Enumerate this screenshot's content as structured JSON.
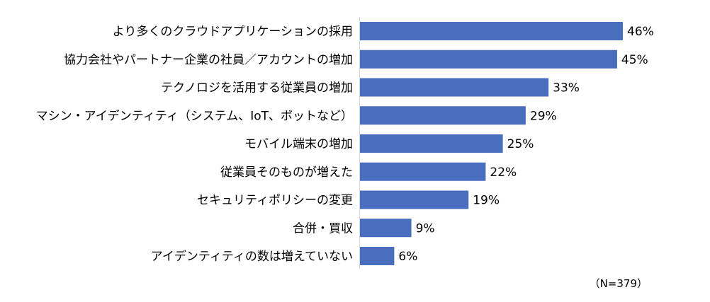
{
  "chart_data": {
    "type": "bar",
    "orientation": "horizontal",
    "categories": [
      "より多くのクラウドアプリケーションの採用",
      "協力会社やパートナー企業の社員／アカウントの増加",
      "テクノロジを活用する従業員の増加",
      "マシン・アイデンティティ（システム、IoT、ボットなど）",
      "モバイル端末の増加",
      "従業員そのものが増えた",
      "セキュリティポリシーの変更",
      "合併・買収",
      "アイデンティティの数は増えていない"
    ],
    "values": [
      46,
      45,
      33,
      29,
      25,
      22,
      19,
      9,
      6
    ],
    "value_labels": [
      "46%",
      "45%",
      "33%",
      "29%",
      "25%",
      "22%",
      "19%",
      "9%",
      "6%"
    ],
    "unit": "%",
    "bar_color": "#4a6ebe",
    "xlim": [
      0,
      50
    ],
    "grid": false,
    "title": "",
    "xlabel": "",
    "ylabel": ""
  },
  "note": "（N=379）"
}
